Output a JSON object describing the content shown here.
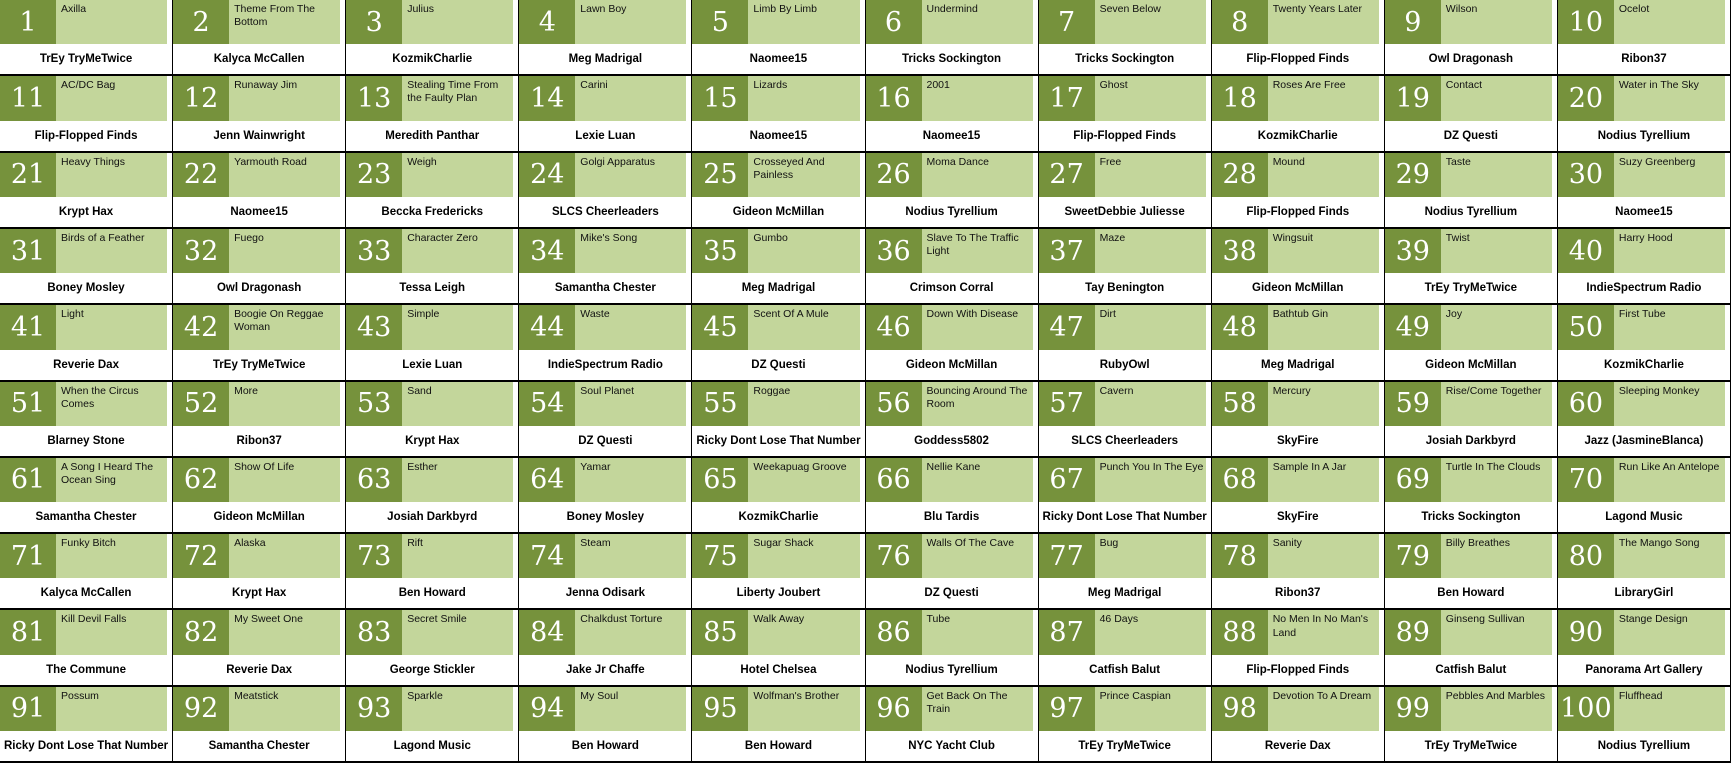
{
  "grid": {
    "columns": 10,
    "rows": 10,
    "colors": {
      "number_box": "#76923c",
      "title_bg": "#c3d69b",
      "name_bg": "#ffffff",
      "border": "#000000",
      "number_text": "#ffffff",
      "title_text": "#111111",
      "name_text": "#000000"
    },
    "items": [
      {
        "rank": "1",
        "title": "Axilla",
        "name": "TrEy TryMeTwice"
      },
      {
        "rank": "2",
        "title": "Theme From The Bottom",
        "name": "Kalyca McCallen"
      },
      {
        "rank": "3",
        "title": "Julius",
        "name": "KozmikCharlie"
      },
      {
        "rank": "4",
        "title": "Lawn Boy",
        "name": "Meg Madrigal"
      },
      {
        "rank": "5",
        "title": "Limb By Limb",
        "name": "Naomee15"
      },
      {
        "rank": "6",
        "title": "Undermind",
        "name": "Tricks Sockington"
      },
      {
        "rank": "7",
        "title": "Seven Below",
        "name": "Tricks Sockington"
      },
      {
        "rank": "8",
        "title": "Twenty Years Later",
        "name": "Flip-Flopped Finds"
      },
      {
        "rank": "9",
        "title": "Wilson",
        "name": "Owl Dragonash"
      },
      {
        "rank": "10",
        "title": "Ocelot",
        "name": "Ribon37"
      },
      {
        "rank": "11",
        "title": "AC/DC Bag",
        "name": "Flip-Flopped Finds"
      },
      {
        "rank": "12",
        "title": "Runaway Jim",
        "name": "Jenn Wainwright"
      },
      {
        "rank": "13",
        "title": "Stealing Time From the Faulty Plan",
        "name": "Meredith Panthar"
      },
      {
        "rank": "14",
        "title": "Carini",
        "name": "Lexie Luan"
      },
      {
        "rank": "15",
        "title": "Lizards",
        "name": "Naomee15"
      },
      {
        "rank": "16",
        "title": "2001",
        "name": "Naomee15"
      },
      {
        "rank": "17",
        "title": "Ghost",
        "name": "Flip-Flopped Finds"
      },
      {
        "rank": "18",
        "title": "Roses Are Free",
        "name": "KozmikCharlie"
      },
      {
        "rank": "19",
        "title": "Contact",
        "name": "DZ Questi"
      },
      {
        "rank": "20",
        "title": "Water in The Sky",
        "name": "Nodius Tyrellium"
      },
      {
        "rank": "21",
        "title": "Heavy Things",
        "name": "Krypt Hax"
      },
      {
        "rank": "22",
        "title": "Yarmouth Road",
        "name": "Naomee15"
      },
      {
        "rank": "23",
        "title": "Weigh",
        "name": "Beccka Fredericks"
      },
      {
        "rank": "24",
        "title": "Golgi Apparatus",
        "name": "SLCS Cheerleaders"
      },
      {
        "rank": "25",
        "title": "Crosseyed And Painless",
        "name": "Gideon McMillan"
      },
      {
        "rank": "26",
        "title": "Moma Dance",
        "name": "Nodius Tyrellium"
      },
      {
        "rank": "27",
        "title": "Free",
        "name": "SweetDebbie Juliesse"
      },
      {
        "rank": "28",
        "title": "Mound",
        "name": "Flip-Flopped Finds"
      },
      {
        "rank": "29",
        "title": "Taste",
        "name": "Nodius Tyrellium"
      },
      {
        "rank": "30",
        "title": "Suzy Greenberg",
        "name": "Naomee15"
      },
      {
        "rank": "31",
        "title": "Birds of a Feather",
        "name": "Boney Mosley"
      },
      {
        "rank": "32",
        "title": "Fuego",
        "name": "Owl Dragonash"
      },
      {
        "rank": "33",
        "title": "Character Zero",
        "name": "Tessa Leigh"
      },
      {
        "rank": "34",
        "title": "Mike's Song",
        "name": "Samantha Chester"
      },
      {
        "rank": "35",
        "title": "Gumbo",
        "name": "Meg Madrigal"
      },
      {
        "rank": "36",
        "title": "Slave To The Traffic Light",
        "name": "Crimson Corral"
      },
      {
        "rank": "37",
        "title": "Maze",
        "name": "Tay Benington"
      },
      {
        "rank": "38",
        "title": "Wingsuit",
        "name": "Gideon McMillan"
      },
      {
        "rank": "39",
        "title": "Twist",
        "name": "TrEy TryMeTwice"
      },
      {
        "rank": "40",
        "title": "Harry Hood",
        "name": "IndieSpectrum Radio"
      },
      {
        "rank": "41",
        "title": "Light",
        "name": "Reverie Dax"
      },
      {
        "rank": "42",
        "title": "Boogie On Reggae Woman",
        "name": "TrEy TryMeTwice"
      },
      {
        "rank": "43",
        "title": "Simple",
        "name": "Lexie Luan"
      },
      {
        "rank": "44",
        "title": "Waste",
        "name": "IndieSpectrum Radio"
      },
      {
        "rank": "45",
        "title": "Scent Of A Mule",
        "name": "DZ Questi"
      },
      {
        "rank": "46",
        "title": "Down With Disease",
        "name": "Gideon McMillan"
      },
      {
        "rank": "47",
        "title": "Dirt",
        "name": "RubyOwl"
      },
      {
        "rank": "48",
        "title": "Bathtub Gin",
        "name": "Meg Madrigal"
      },
      {
        "rank": "49",
        "title": "Joy",
        "name": "Gideon McMillan"
      },
      {
        "rank": "50",
        "title": "First Tube",
        "name": "KozmikCharlie"
      },
      {
        "rank": "51",
        "title": "When the Circus Comes",
        "name": "Blarney Stone"
      },
      {
        "rank": "52",
        "title": "More",
        "name": "Ribon37"
      },
      {
        "rank": "53",
        "title": "Sand",
        "name": "Krypt Hax"
      },
      {
        "rank": "54",
        "title": "Soul Planet",
        "name": "DZ Questi"
      },
      {
        "rank": "55",
        "title": "Roggae",
        "name": "Ricky Dont Lose That Number"
      },
      {
        "rank": "56",
        "title": "Bouncing Around The Room",
        "name": "Goddess5802"
      },
      {
        "rank": "57",
        "title": "Cavern",
        "name": "SLCS Cheerleaders"
      },
      {
        "rank": "58",
        "title": "Mercury",
        "name": "SkyFire"
      },
      {
        "rank": "59",
        "title": "Rise/Come Together",
        "name": "Josiah Darkbyrd"
      },
      {
        "rank": "60",
        "title": "Sleeping Monkey",
        "name": "Jazz (JasmineBlanca)"
      },
      {
        "rank": "61",
        "title": "A Song I Heard The Ocean Sing",
        "name": "Samantha Chester"
      },
      {
        "rank": "62",
        "title": "Show Of Life",
        "name": "Gideon McMillan"
      },
      {
        "rank": "63",
        "title": "Esther",
        "name": "Josiah Darkbyrd"
      },
      {
        "rank": "64",
        "title": "Yamar",
        "name": "Boney Mosley"
      },
      {
        "rank": "65",
        "title": "Weekapuag Groove",
        "name": "KozmikCharlie"
      },
      {
        "rank": "66",
        "title": "Nellie Kane",
        "name": "Blu Tardis"
      },
      {
        "rank": "67",
        "title": "Punch You In The Eye",
        "name": "Ricky Dont Lose That Number"
      },
      {
        "rank": "68",
        "title": "Sample In A Jar",
        "name": "SkyFire"
      },
      {
        "rank": "69",
        "title": "Turtle In The Clouds",
        "name": "Tricks Sockington"
      },
      {
        "rank": "70",
        "title": "Run Like An Antelope",
        "name": "Lagond Music"
      },
      {
        "rank": "71",
        "title": "Funky Bitch",
        "name": "Kalyca McCallen"
      },
      {
        "rank": "72",
        "title": "Alaska",
        "name": "Krypt Hax"
      },
      {
        "rank": "73",
        "title": "Rift",
        "name": "Ben Howard"
      },
      {
        "rank": "74",
        "title": "Steam",
        "name": "Jenna Odisark"
      },
      {
        "rank": "75",
        "title": "Sugar Shack",
        "name": "Liberty Joubert"
      },
      {
        "rank": "76",
        "title": "Walls Of The Cave",
        "name": "DZ Questi"
      },
      {
        "rank": "77",
        "title": "Bug",
        "name": "Meg Madrigal"
      },
      {
        "rank": "78",
        "title": "Sanity",
        "name": "Ribon37"
      },
      {
        "rank": "79",
        "title": "Billy Breathes",
        "name": "Ben Howard"
      },
      {
        "rank": "80",
        "title": "The Mango Song",
        "name": "LibraryGirl"
      },
      {
        "rank": "81",
        "title": "Kill Devil Falls",
        "name": "The Commune"
      },
      {
        "rank": "82",
        "title": "My Sweet One",
        "name": "Reverie Dax"
      },
      {
        "rank": "83",
        "title": "Secret Smile",
        "name": "George Stickler"
      },
      {
        "rank": "84",
        "title": "Chalkdust Torture",
        "name": "Jake Jr Chaffe"
      },
      {
        "rank": "85",
        "title": "Walk Away",
        "name": "Hotel Chelsea"
      },
      {
        "rank": "86",
        "title": "Tube",
        "name": "Nodius Tyrellium"
      },
      {
        "rank": "87",
        "title": "46 Days",
        "name": "Catfish Balut"
      },
      {
        "rank": "88",
        "title": "No Men In No Man's Land",
        "name": "Flip-Flopped Finds"
      },
      {
        "rank": "89",
        "title": "Ginseng Sullivan",
        "name": "Catfish Balut"
      },
      {
        "rank": "90",
        "title": "Stange Design",
        "name": "Panorama Art Gallery"
      },
      {
        "rank": "91",
        "title": "Possum",
        "name": "Ricky Dont Lose That Number"
      },
      {
        "rank": "92",
        "title": "Meatstick",
        "name": "Samantha Chester"
      },
      {
        "rank": "93",
        "title": "Sparkle",
        "name": "Lagond Music"
      },
      {
        "rank": "94",
        "title": "My Soul",
        "name": "Ben Howard"
      },
      {
        "rank": "95",
        "title": "Wolfman's Brother",
        "name": "Ben Howard"
      },
      {
        "rank": "96",
        "title": "Get Back On The Train",
        "name": "NYC Yacht Club"
      },
      {
        "rank": "97",
        "title": "Prince Caspian",
        "name": "TrEy TryMeTwice"
      },
      {
        "rank": "98",
        "title": "Devotion To A Dream",
        "name": "Reverie Dax"
      },
      {
        "rank": "99",
        "title": "Pebbles And Marbles",
        "name": "TrEy TryMeTwice"
      },
      {
        "rank": "100",
        "title": "Fluffhead",
        "name": "Nodius Tyrellium"
      }
    ]
  }
}
